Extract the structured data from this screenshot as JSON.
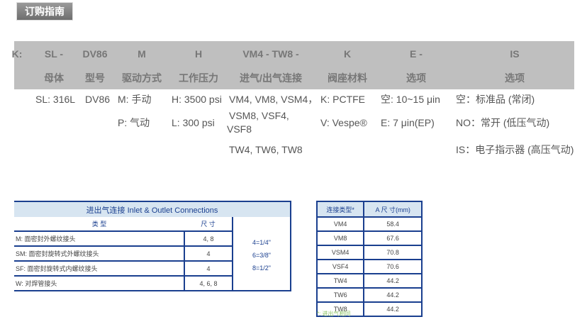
{
  "title_tab": "订购指南",
  "order_header": {
    "codes": [
      "K:",
      "SL -",
      "DV86",
      "M",
      "H",
      "VM4 - TW8 -",
      "K",
      "E -",
      "IS"
    ],
    "labels": [
      "母体",
      "型号",
      "驱动方式",
      "工作压力",
      "进气/出气连接",
      "阀座材料",
      "选项",
      "选项"
    ]
  },
  "order_rows": {
    "body": "SL: 316L",
    "model": "DV86",
    "actuation": [
      "M: 手动",
      "P: 气动"
    ],
    "pressure": [
      "H: 3500 psi",
      "L: 300 psi"
    ],
    "connections": [
      "VM4, VM8, VSM4，",
      "VSM8, VSF4,",
      "VSF8",
      "TW4, TW6, TW8"
    ],
    "seat": [
      "K: PCTFE",
      "V: Vespe®"
    ],
    "option_e": [
      "空: 10~15 μin",
      "E: 7 μin(EP)"
    ],
    "option_is": [
      "空：标准品 (常闭)",
      "NO：常开 (低压气动)",
      "IS：电子指示器 (高压气动)"
    ]
  },
  "connections_table": {
    "title": "进出气连接 Inlet & Outlet Connections",
    "headers": [
      "类 型",
      "尺 寸"
    ],
    "rows": [
      {
        "type": "M: 面密封外螺纹接头",
        "size": "4, 8"
      },
      {
        "type": "SM: 面密封旋转式外螺纹接头",
        "size": "4"
      },
      {
        "type": "SF: 面密封旋转式内螺纹接头",
        "size": "4"
      },
      {
        "type": "W: 对焊管接头",
        "size": "4, 6, 8"
      }
    ],
    "conversions": [
      "4=1/4\"",
      "6=3/8\"",
      "8=1/2\""
    ]
  },
  "dimension_table": {
    "headers": [
      "连接类型*",
      "A 尺 寸(mm)"
    ],
    "rows": [
      [
        "VM4",
        "58.4"
      ],
      [
        "VM8",
        "67.6"
      ],
      [
        "VSM4",
        "70.8"
      ],
      [
        "VSF4",
        "70.6"
      ],
      [
        "TW4",
        "44.2"
      ],
      [
        "TW6",
        "44.2"
      ],
      [
        "TW8",
        "44.2"
      ]
    ],
    "note": "*: 进出气相同"
  }
}
